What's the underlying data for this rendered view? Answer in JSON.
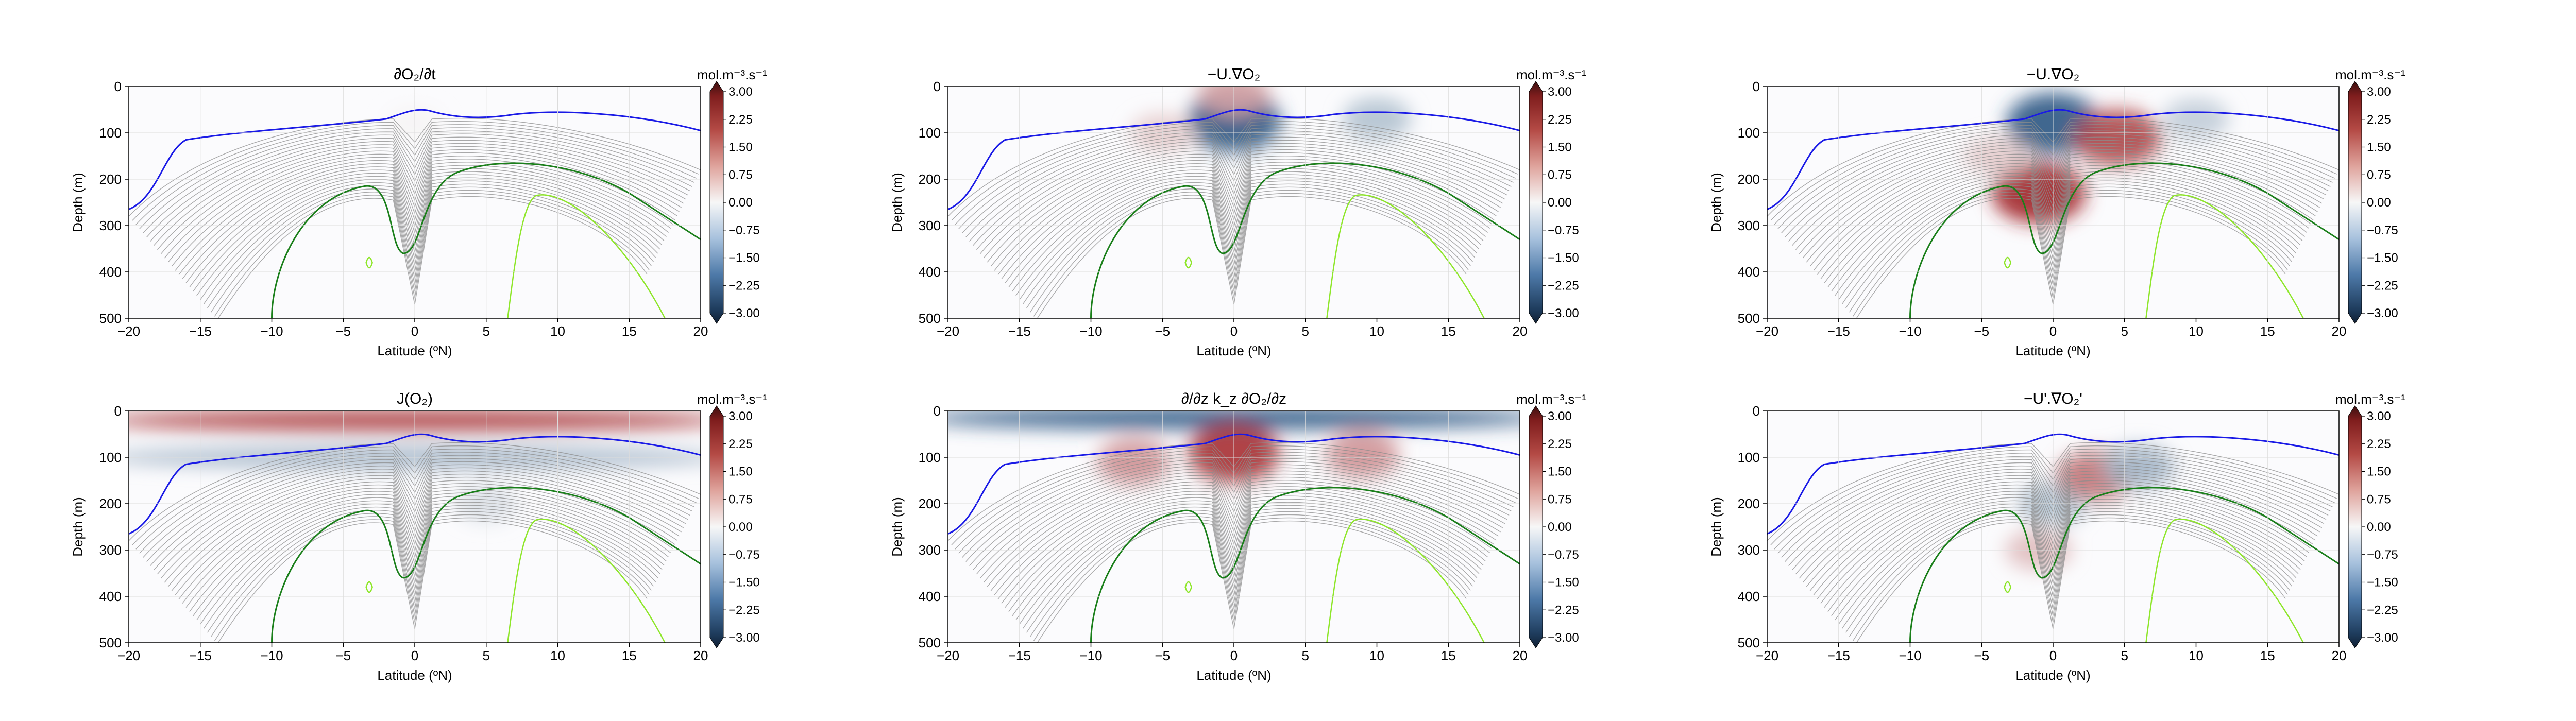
{
  "figure": {
    "colormap": {
      "negative": "#2f5a86",
      "mid": "#f7f7f7",
      "positive": "#a3262a",
      "contour_gray": "#8c8c8c",
      "contour_blue": "#1a1ae6",
      "contour_green": "#1a7f1a",
      "contour_lime": "#8ee62a"
    },
    "axis_common": {
      "xlabel": "Latitude (ºN)",
      "ylabel": "Depth (m)",
      "xticks": [
        "−20",
        "−15",
        "−10",
        "−5",
        "0",
        "5",
        "10",
        "15",
        "20"
      ],
      "yticks": [
        "0",
        "100",
        "200",
        "300",
        "400",
        "500"
      ],
      "xlim": [
        -20,
        20
      ],
      "ylim": [
        500,
        0
      ],
      "colorbar_unit": "mol.m⁻³.s⁻¹",
      "colorbar_ticks": [
        "3.00",
        "2.25",
        "1.50",
        "0.75",
        "0.00",
        "−0.75",
        "−1.50",
        "−2.25",
        "−3.00"
      ],
      "colorbar_range": [
        -3.0,
        3.0
      ]
    }
  },
  "chart_data": [
    {
      "type": "heatmap",
      "title": "∂O₂/∂t",
      "xlabel": "Latitude (ºN)",
      "ylabel": "Depth (m)",
      "xlim": [
        -20,
        20
      ],
      "ylim": [
        500,
        0
      ],
      "colorbar_unit": "mol.m⁻³.s⁻¹",
      "colorbar_range": [
        -3.0,
        3.0
      ],
      "features": [
        {
          "lat": 0,
          "depth": 80,
          "value": 0.05
        }
      ]
    },
    {
      "type": "heatmap",
      "title": "−U.∇O₂",
      "xlabel": "Latitude (ºN)",
      "ylabel": "Depth (m)",
      "xlim": [
        -20,
        20
      ],
      "ylim": [
        500,
        0
      ],
      "colorbar_unit": "mol.m⁻³.s⁻¹",
      "colorbar_range": [
        -3.0,
        3.0
      ],
      "features": [
        {
          "lat": 0,
          "depth": 75,
          "value": -3.0
        },
        {
          "lat": 0,
          "depth": 15,
          "value": 1.2
        },
        {
          "lat": 10,
          "depth": 70,
          "value": -1.0
        },
        {
          "lat": -5,
          "depth": 100,
          "value": 0.6
        }
      ]
    },
    {
      "type": "heatmap",
      "title": "−U.∇O₂",
      "xlabel": "Latitude (ºN)",
      "ylabel": "Depth (m)",
      "xlim": [
        -20,
        20
      ],
      "ylim": [
        500,
        0
      ],
      "colorbar_unit": "mol.m⁻³.s⁻¹",
      "colorbar_range": [
        -3.0,
        3.0
      ],
      "features": [
        {
          "lat": 0,
          "depth": 80,
          "value": -3.0
        },
        {
          "lat": -1,
          "depth": 230,
          "value": 3.0
        },
        {
          "lat": 4.5,
          "depth": 110,
          "value": 2.5
        },
        {
          "lat": 10,
          "depth": 70,
          "value": -0.8
        },
        {
          "lat": -4,
          "depth": 150,
          "value": 0.6
        }
      ]
    },
    {
      "type": "heatmap",
      "title": "J(O₂)",
      "xlabel": "Latitude (ºN)",
      "ylabel": "Depth (m)",
      "xlim": [
        -20,
        20
      ],
      "ylim": [
        500,
        0
      ],
      "colorbar_unit": "mol.m⁻³.s⁻¹",
      "colorbar_range": [
        -3.0,
        3.0
      ],
      "features": [
        {
          "lat": 0,
          "depth": 20,
          "value": 2.6
        },
        {
          "lat": 0,
          "depth": 100,
          "value": -1.2
        },
        {
          "lat": 5,
          "depth": 200,
          "value": -0.4
        }
      ]
    },
    {
      "type": "heatmap",
      "title": "∂/∂z k_z ∂O₂/∂z",
      "xlabel": "Latitude (ºN)",
      "ylabel": "Depth (m)",
      "xlim": [
        -20,
        20
      ],
      "ylim": [
        500,
        0
      ],
      "colorbar_unit": "mol.m⁻³.s⁻¹",
      "colorbar_range": [
        -3.0,
        3.0
      ],
      "features": [
        {
          "lat": 0,
          "depth": 15,
          "value": -3.0
        },
        {
          "lat": 0,
          "depth": 90,
          "value": 2.8
        },
        {
          "lat": -7,
          "depth": 110,
          "value": 1.4
        },
        {
          "lat": 9,
          "depth": 95,
          "value": 1.4
        }
      ]
    },
    {
      "type": "heatmap",
      "title": "−U'.∇O₂'",
      "xlabel": "Latitude (ºN)",
      "ylabel": "Depth (m)",
      "xlim": [
        -20,
        20
      ],
      "ylim": [
        500,
        0
      ],
      "colorbar_unit": "mol.m⁻³.s⁻¹",
      "colorbar_range": [
        -3.0,
        3.0
      ],
      "features": [
        {
          "lat": 0,
          "depth": 200,
          "value": -1.0
        },
        {
          "lat": 3,
          "depth": 140,
          "value": 1.8
        },
        {
          "lat": 6,
          "depth": 120,
          "value": -1.2
        },
        {
          "lat": -1,
          "depth": 300,
          "value": 0.8
        }
      ]
    }
  ]
}
